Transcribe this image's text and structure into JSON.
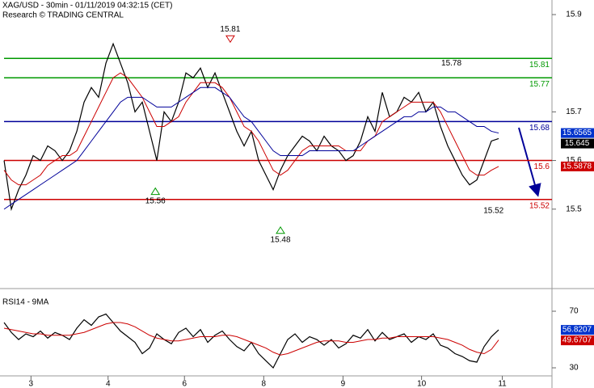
{
  "chart_data": [
    {
      "type": "line",
      "title": "XAG/USD - 30min - 01/11/2019 04:32:15 (CET)",
      "subtitle": "Research © TRADING CENTRAL",
      "x": [
        0,
        1,
        2,
        3,
        4,
        5,
        6,
        7,
        8,
        9,
        10,
        11,
        12,
        13,
        14,
        15,
        16,
        17,
        18,
        19,
        20,
        21,
        22,
        23,
        24,
        25,
        26,
        27,
        28,
        29,
        30,
        31,
        32,
        33,
        34,
        35,
        36,
        37,
        38,
        39,
        40,
        41,
        42,
        43,
        44,
        45,
        46,
        47,
        48,
        49,
        50,
        51,
        52,
        53,
        54,
        55,
        56,
        57,
        58,
        59,
        60,
        61,
        62,
        63,
        64,
        65,
        66,
        67,
        68
      ],
      "xlim": [
        -0.56,
        75.33
      ],
      "xticks": [
        {
          "value": 3.7,
          "label": "3"
        },
        {
          "value": 14.3,
          "label": "4"
        },
        {
          "value": 24.8,
          "label": "6"
        },
        {
          "value": 35.7,
          "label": "8"
        },
        {
          "value": 46.6,
          "label": "9"
        },
        {
          "value": 57.4,
          "label": "10"
        },
        {
          "value": 68.5,
          "label": "11"
        }
      ],
      "ylim": [
        15.34,
        15.93
      ],
      "yticks": [
        15.5,
        15.6,
        15.7,
        15.9
      ],
      "series": [
        {
          "color": "#000000",
          "values": [
            15.6,
            15.5,
            15.54,
            15.57,
            15.61,
            15.6,
            15.63,
            15.62,
            15.6,
            15.62,
            15.66,
            15.72,
            15.75,
            15.73,
            15.8,
            15.84,
            15.8,
            15.76,
            15.7,
            15.72,
            15.66,
            15.6,
            15.7,
            15.68,
            15.72,
            15.78,
            15.77,
            15.79,
            15.75,
            15.78,
            15.74,
            15.7,
            15.66,
            15.63,
            15.66,
            15.6,
            15.57,
            15.54,
            15.58,
            15.61,
            15.63,
            15.65,
            15.64,
            15.62,
            15.65,
            15.63,
            15.62,
            15.6,
            15.61,
            15.64,
            15.69,
            15.66,
            15.74,
            15.69,
            15.7,
            15.73,
            15.72,
            15.74,
            15.7,
            15.72,
            15.67,
            15.63,
            15.6,
            15.57,
            15.55,
            15.56,
            15.6,
            15.64,
            15.645
          ],
          "box": "#000000"
        },
        {
          "color": "#cc0000",
          "values": [
            15.58,
            15.56,
            15.55,
            15.55,
            15.56,
            15.57,
            15.59,
            15.6,
            15.61,
            15.61,
            15.62,
            15.65,
            15.68,
            15.71,
            15.74,
            15.77,
            15.78,
            15.77,
            15.75,
            15.73,
            15.7,
            15.67,
            15.67,
            15.68,
            15.69,
            15.72,
            15.74,
            15.76,
            15.76,
            15.76,
            15.75,
            15.73,
            15.7,
            15.67,
            15.66,
            15.64,
            15.61,
            15.58,
            15.57,
            15.58,
            15.6,
            15.62,
            15.63,
            15.63,
            15.63,
            15.63,
            15.63,
            15.62,
            15.62,
            15.62,
            15.64,
            15.65,
            15.68,
            15.69,
            15.7,
            15.71,
            15.72,
            15.72,
            15.72,
            15.72,
            15.7,
            15.67,
            15.64,
            15.61,
            15.58,
            15.57,
            15.57,
            15.58,
            15.5878
          ],
          "box": "#cc0000"
        },
        {
          "color": "#000099",
          "values": [
            15.5,
            15.51,
            15.52,
            15.53,
            15.54,
            15.55,
            15.56,
            15.57,
            15.58,
            15.59,
            15.6,
            15.62,
            15.64,
            15.66,
            15.68,
            15.7,
            15.72,
            15.73,
            15.73,
            15.73,
            15.72,
            15.71,
            15.71,
            15.71,
            15.72,
            15.73,
            15.74,
            15.75,
            15.75,
            15.75,
            15.74,
            15.73,
            15.71,
            15.69,
            15.68,
            15.66,
            15.64,
            15.62,
            15.61,
            15.61,
            15.61,
            15.61,
            15.62,
            15.62,
            15.62,
            15.62,
            15.62,
            15.62,
            15.62,
            15.63,
            15.64,
            15.65,
            15.66,
            15.67,
            15.68,
            15.69,
            15.69,
            15.7,
            15.7,
            15.71,
            15.71,
            15.7,
            15.7,
            15.69,
            15.68,
            15.67,
            15.67,
            15.66,
            15.6565
          ],
          "box": "#0033cc"
        }
      ],
      "levels": [
        {
          "value": 15.81,
          "color": "#009900"
        },
        {
          "value": 15.77,
          "color": "#009900"
        },
        {
          "value": 15.68,
          "color": "#000099"
        },
        {
          "value": 15.6,
          "color": "#cc0000"
        },
        {
          "value": 15.52,
          "color": "#cc0000"
        }
      ],
      "annotations": [
        15.81,
        15.56,
        15.48,
        15.52,
        15.78
      ]
    },
    {
      "type": "line",
      "title": "RSI14 - 9MA",
      "ylim": [
        24.3,
        84.3
      ],
      "yticks": [
        30,
        70
      ],
      "series": [
        {
          "color": "#000000",
          "values": [
            62,
            55,
            50,
            54,
            52,
            56,
            51,
            55,
            53,
            50,
            58,
            64,
            60,
            66,
            68,
            62,
            56,
            52,
            48,
            40,
            44,
            54,
            50,
            47,
            55,
            58,
            52,
            57,
            48,
            53,
            56,
            50,
            45,
            42,
            48,
            40,
            35,
            30,
            40,
            50,
            54,
            48,
            52,
            50,
            46,
            50,
            44,
            47,
            53,
            51,
            57,
            49,
            55,
            50,
            52,
            54,
            48,
            52,
            50,
            54,
            46,
            44,
            40,
            38,
            35,
            34,
            45,
            52,
            56.8207
          ],
          "box": "#0033cc"
        },
        {
          "color": "#cc0000",
          "values": [
            58,
            57,
            56,
            55,
            54,
            54,
            53,
            53,
            53,
            53,
            54,
            55,
            57,
            59,
            61,
            62,
            62,
            61,
            59,
            56,
            53,
            51,
            50,
            49,
            49,
            50,
            51,
            52,
            52,
            52,
            53,
            53,
            52,
            50,
            48,
            46,
            44,
            41,
            39,
            40,
            42,
            44,
            46,
            48,
            49,
            49,
            49,
            48,
            48,
            49,
            50,
            50,
            51,
            51,
            52,
            52,
            52,
            52,
            52,
            52,
            51,
            50,
            48,
            46,
            43,
            41,
            40,
            43,
            49.6707
          ],
          "box": "#cc0000"
        }
      ]
    }
  ]
}
